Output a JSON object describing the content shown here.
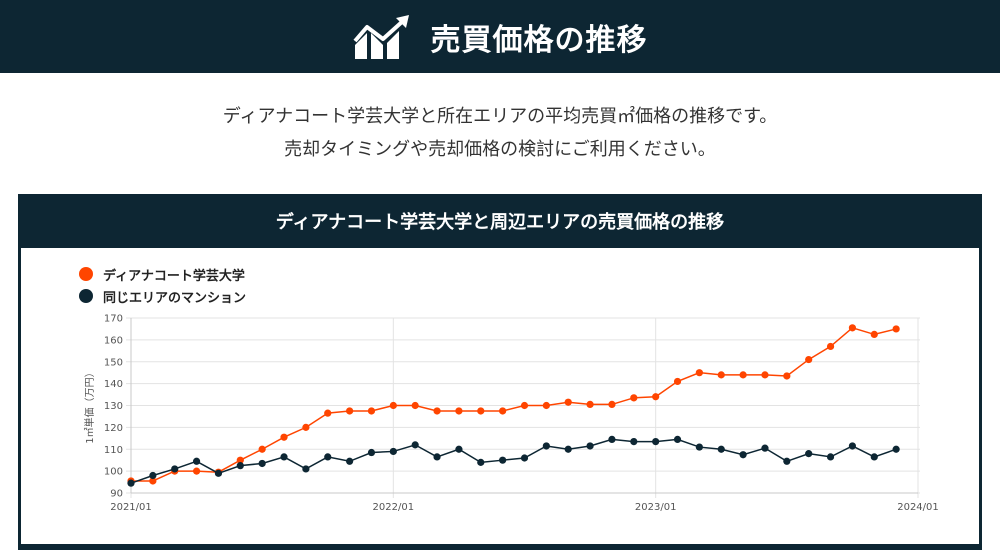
{
  "header": {
    "title": "売買価格の推移",
    "icon": "chart-up-icon"
  },
  "intro": {
    "line1": "ディアナコート学芸大学と所在エリアの平均売買㎡価格の推移です。",
    "line2": "売却タイミングや売却価格の検討にご利用ください。"
  },
  "card": {
    "title": "ディアナコート学芸大学と周辺エリアの売買価格の推移"
  },
  "colors": {
    "header_bg": "#0d2633",
    "series1": "#ff4500",
    "series2": "#0d2633"
  },
  "chart_data": {
    "type": "line",
    "ylabel": "1㎡単価（万円）",
    "ylim": [
      90,
      170
    ],
    "yticks": [
      "170",
      "160",
      "150",
      "140",
      "130",
      "120",
      "110",
      "100",
      "90"
    ],
    "xlim": [
      "2021/01",
      "2024/01"
    ],
    "xticks": [
      "2021/01",
      "2022/01",
      "2023/01",
      "2024/01"
    ],
    "grid": true,
    "legend_position": "top-left",
    "x": [
      "2021/01",
      "2021/02",
      "2021/03",
      "2021/04",
      "2021/05",
      "2021/06",
      "2021/07",
      "2021/08",
      "2021/09",
      "2021/10",
      "2021/11",
      "2021/12",
      "2022/01",
      "2022/02",
      "2022/03",
      "2022/04",
      "2022/05",
      "2022/06",
      "2022/07",
      "2022/08",
      "2022/09",
      "2022/10",
      "2022/11",
      "2022/12",
      "2023/01",
      "2023/02",
      "2023/03",
      "2023/04",
      "2023/05",
      "2023/06",
      "2023/07",
      "2023/08",
      "2023/09",
      "2023/10",
      "2023/11",
      "2023/12"
    ],
    "series": [
      {
        "name": "ディアナコート学芸大学",
        "color": "#ff4500",
        "values": [
          95.5,
          95.5,
          100,
          100,
          99.5,
          105,
          110,
          115.5,
          120,
          126.5,
          127.5,
          127.5,
          130,
          130,
          127.5,
          127.5,
          127.5,
          127.5,
          130,
          130,
          131.5,
          130.5,
          130.5,
          133.5,
          134,
          141,
          145,
          144,
          144,
          144,
          143.5,
          151,
          157,
          165.5,
          162.5,
          165
        ]
      },
      {
        "name": "同じエリアのマンション",
        "color": "#0d2633",
        "values": [
          94.5,
          98,
          101,
          104.5,
          99,
          102.5,
          103.5,
          106.5,
          101,
          106.5,
          104.5,
          108.5,
          109,
          112,
          106.5,
          110,
          104,
          105,
          106,
          111.5,
          110,
          111.5,
          114.5,
          113.5,
          113.5,
          114.5,
          111,
          110,
          107.5,
          110.5,
          104.5,
          108,
          106.5,
          111.5,
          106.5,
          110
        ]
      }
    ]
  }
}
